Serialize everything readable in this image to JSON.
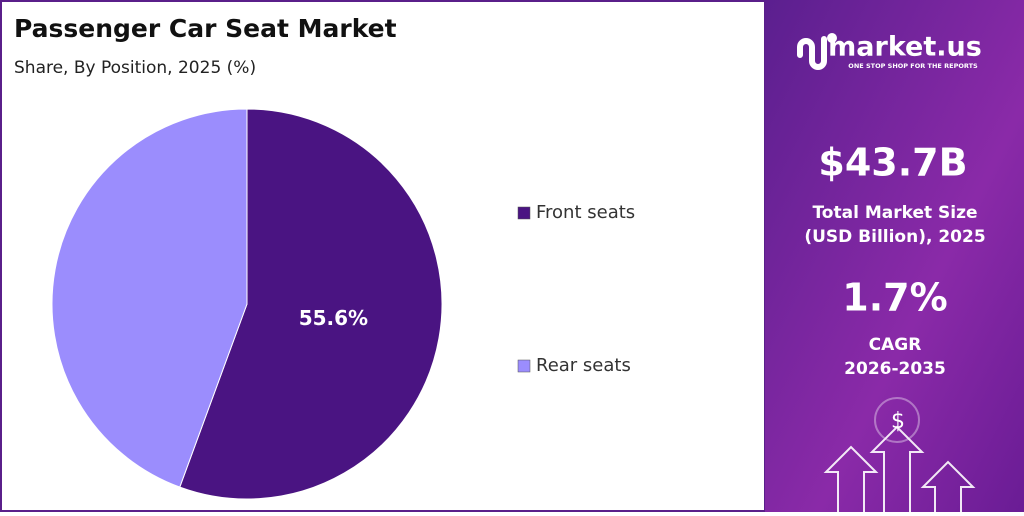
{
  "chart_data": {
    "type": "pie",
    "title": "Passenger Car Seat Market",
    "subtitle": "Share, By Position, 2025 (%)",
    "categories": [
      "Front seats",
      "Rear seats"
    ],
    "values": [
      55.6,
      44.4
    ],
    "value_labels": [
      "55.6%",
      null
    ],
    "colors": [
      "#4a1482",
      "#9b8dfd"
    ]
  },
  "sidebar": {
    "brand": "market.us",
    "tagline": "ONE STOP SHOP FOR THE REPORTS",
    "market_size": "$43.7B",
    "market_size_label_1": "Total Market Size",
    "market_size_label_2": "(USD Billion), 2025",
    "cagr": "1.7%",
    "cagr_label_1": "CAGR",
    "cagr_label_2": "2026-2035"
  }
}
